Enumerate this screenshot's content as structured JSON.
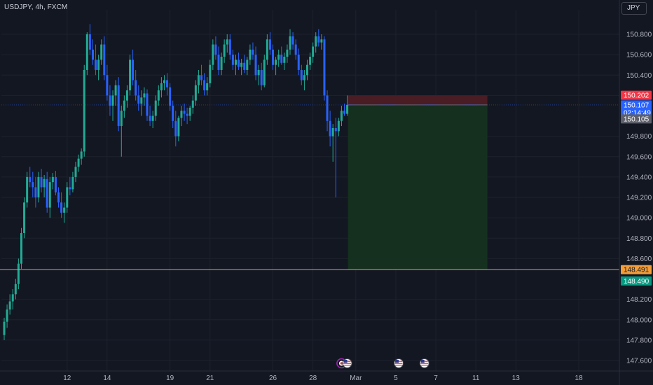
{
  "header": {
    "symbol_title": "USDJPY, 4h, FXCM",
    "currency_button": "JPY"
  },
  "colors": {
    "background": "#131722",
    "candle_up": "#22ab94",
    "candle_down": "#2962ff",
    "stop_zone": "#4a1c24",
    "target_zone": "#15301f",
    "level_line": "#f29d38",
    "grid": "#1e222d"
  },
  "chart_data": {
    "type": "candlestick",
    "symbol": "USDJPY",
    "timeframe": "4h",
    "source": "FXCM",
    "y_ticks": [
      150.8,
      150.6,
      150.4,
      150.2,
      149.8,
      149.6,
      149.4,
      149.2,
      149.0,
      148.8,
      148.6,
      148.2,
      148.0,
      147.8,
      147.6
    ],
    "ylim": [
      147.55,
      151.0
    ],
    "x_labels": [
      "12",
      "14",
      "19",
      "21",
      "26",
      "28",
      "Mar",
      "5",
      "7",
      "11",
      "13",
      "18"
    ],
    "x_label_candle_index": [
      22,
      36,
      58,
      72,
      94,
      108,
      123,
      137,
      151,
      165,
      179,
      201
    ],
    "candles": [
      [
        147.85,
        148.02,
        147.8,
        147.98
      ],
      [
        147.98,
        148.15,
        147.92,
        148.1
      ],
      [
        148.1,
        148.25,
        148.05,
        148.18
      ],
      [
        148.18,
        148.3,
        148.1,
        148.25
      ],
      [
        148.25,
        148.4,
        148.2,
        148.35
      ],
      [
        148.35,
        148.6,
        148.3,
        148.55
      ],
      [
        148.55,
        148.9,
        148.5,
        148.85
      ],
      [
        148.85,
        149.2,
        148.8,
        149.15
      ],
      [
        149.15,
        149.45,
        149.1,
        149.4
      ],
      [
        149.4,
        149.5,
        149.3,
        149.35
      ],
      [
        149.35,
        149.45,
        149.2,
        149.3
      ],
      [
        149.3,
        149.4,
        149.1,
        149.2
      ],
      [
        149.2,
        149.45,
        149.15,
        149.4
      ],
      [
        149.4,
        149.48,
        149.25,
        149.3
      ],
      [
        149.3,
        149.42,
        149.2,
        149.38
      ],
      [
        149.38,
        149.45,
        149.05,
        149.1
      ],
      [
        149.1,
        149.4,
        149.0,
        149.35
      ],
      [
        149.35,
        149.44,
        149.28,
        149.4
      ],
      [
        149.4,
        149.46,
        149.22,
        149.25
      ],
      [
        149.25,
        149.3,
        149.1,
        149.15
      ],
      [
        149.15,
        149.25,
        149.0,
        149.05
      ],
      [
        149.05,
        149.15,
        148.95,
        149.1
      ],
      [
        149.1,
        149.35,
        149.05,
        149.3
      ],
      [
        149.3,
        149.4,
        149.22,
        149.28
      ],
      [
        149.28,
        149.45,
        149.25,
        149.4
      ],
      [
        149.4,
        149.55,
        149.35,
        149.5
      ],
      [
        149.5,
        149.62,
        149.45,
        149.58
      ],
      [
        149.58,
        149.68,
        149.52,
        149.65
      ],
      [
        149.65,
        150.5,
        149.6,
        150.45
      ],
      [
        150.45,
        150.82,
        150.4,
        150.8
      ],
      [
        150.8,
        150.9,
        150.6,
        150.65
      ],
      [
        150.65,
        150.75,
        150.5,
        150.55
      ],
      [
        150.55,
        150.7,
        150.4,
        150.45
      ],
      [
        150.45,
        150.6,
        150.35,
        150.55
      ],
      [
        150.55,
        150.75,
        150.5,
        150.7
      ],
      [
        150.7,
        150.78,
        150.35,
        150.4
      ],
      [
        150.4,
        150.5,
        150.15,
        150.2
      ],
      [
        150.2,
        150.3,
        150.0,
        150.1
      ],
      [
        150.1,
        150.25,
        149.95,
        150.2
      ],
      [
        150.2,
        150.35,
        150.1,
        150.3
      ],
      [
        150.3,
        150.38,
        149.85,
        149.9
      ],
      [
        149.9,
        150.1,
        149.6,
        150.05
      ],
      [
        150.05,
        150.2,
        149.98,
        150.15
      ],
      [
        150.15,
        150.3,
        150.08,
        150.25
      ],
      [
        150.25,
        150.6,
        150.2,
        150.55
      ],
      [
        150.55,
        150.65,
        150.3,
        150.35
      ],
      [
        150.35,
        150.45,
        150.15,
        150.2
      ],
      [
        150.2,
        150.3,
        150.05,
        150.12
      ],
      [
        150.12,
        150.25,
        150.0,
        150.18
      ],
      [
        150.18,
        150.28,
        150.1,
        150.22
      ],
      [
        150.22,
        150.26,
        149.95,
        150.0
      ],
      [
        150.0,
        150.1,
        149.9,
        149.95
      ],
      [
        149.95,
        150.05,
        149.88,
        150.0
      ],
      [
        150.0,
        150.2,
        149.95,
        150.15
      ],
      [
        150.15,
        150.3,
        150.1,
        150.25
      ],
      [
        150.25,
        150.38,
        150.18,
        150.32
      ],
      [
        150.32,
        150.4,
        150.25,
        150.35
      ],
      [
        150.35,
        150.42,
        150.2,
        150.28
      ],
      [
        150.28,
        150.32,
        150.05,
        150.1
      ],
      [
        150.1,
        150.15,
        149.88,
        149.95
      ],
      [
        149.95,
        150.05,
        149.7,
        149.8
      ],
      [
        149.8,
        150.0,
        149.75,
        149.98
      ],
      [
        149.98,
        150.1,
        149.9,
        150.05
      ],
      [
        150.05,
        150.12,
        149.95,
        150.02
      ],
      [
        150.02,
        150.08,
        149.92,
        150.0
      ],
      [
        150.0,
        150.1,
        149.95,
        150.08
      ],
      [
        150.08,
        150.2,
        150.02,
        150.15
      ],
      [
        150.15,
        150.35,
        150.1,
        150.3
      ],
      [
        150.3,
        150.45,
        150.22,
        150.4
      ],
      [
        150.4,
        150.5,
        150.3,
        150.35
      ],
      [
        150.35,
        150.42,
        150.2,
        150.25
      ],
      [
        150.25,
        150.38,
        150.2,
        150.32
      ],
      [
        150.32,
        150.55,
        150.28,
        150.5
      ],
      [
        150.5,
        150.75,
        150.45,
        150.7
      ],
      [
        150.7,
        150.78,
        150.55,
        150.6
      ],
      [
        150.6,
        150.68,
        150.4,
        150.45
      ],
      [
        150.45,
        150.62,
        150.4,
        150.58
      ],
      [
        150.58,
        150.75,
        150.52,
        150.7
      ],
      [
        150.7,
        150.8,
        150.62,
        150.75
      ],
      [
        150.75,
        150.8,
        150.55,
        150.6
      ],
      [
        150.6,
        150.65,
        150.45,
        150.5
      ],
      [
        150.5,
        150.6,
        150.4,
        150.55
      ],
      [
        150.55,
        150.62,
        150.45,
        150.48
      ],
      [
        150.48,
        150.56,
        150.4,
        150.52
      ],
      [
        150.52,
        150.6,
        150.42,
        150.45
      ],
      [
        150.45,
        150.58,
        150.4,
        150.55
      ],
      [
        150.55,
        150.7,
        150.5,
        150.65
      ],
      [
        150.65,
        150.72,
        150.55,
        150.6
      ],
      [
        150.6,
        150.68,
        150.35,
        150.4
      ],
      [
        150.4,
        150.5,
        150.3,
        150.45
      ],
      [
        150.45,
        150.52,
        150.25,
        150.3
      ],
      [
        150.3,
        150.6,
        150.28,
        150.55
      ],
      [
        150.55,
        150.8,
        150.5,
        150.75
      ],
      [
        150.75,
        150.82,
        150.6,
        150.65
      ],
      [
        150.65,
        150.7,
        150.45,
        150.5
      ],
      [
        150.5,
        150.58,
        150.4,
        150.55
      ],
      [
        150.55,
        150.65,
        150.48,
        150.6
      ],
      [
        150.6,
        150.68,
        150.5,
        150.52
      ],
      [
        150.52,
        150.62,
        150.45,
        150.58
      ],
      [
        150.58,
        150.7,
        150.52,
        150.65
      ],
      [
        150.65,
        150.85,
        150.6,
        150.78
      ],
      [
        150.78,
        150.82,
        150.65,
        150.7
      ],
      [
        150.7,
        150.75,
        150.55,
        150.6
      ],
      [
        150.6,
        150.66,
        150.4,
        150.45
      ],
      [
        150.45,
        150.5,
        150.3,
        150.35
      ],
      [
        150.35,
        150.45,
        150.25,
        150.4
      ],
      [
        150.4,
        150.55,
        150.35,
        150.5
      ],
      [
        150.5,
        150.62,
        150.45,
        150.58
      ],
      [
        150.58,
        150.72,
        150.52,
        150.68
      ],
      [
        150.68,
        150.82,
        150.62,
        150.78
      ],
      [
        150.78,
        150.85,
        150.68,
        150.72
      ],
      [
        150.72,
        150.8,
        150.65,
        150.75
      ],
      [
        150.75,
        150.78,
        150.15,
        150.2
      ],
      [
        150.2,
        150.25,
        149.85,
        149.95
      ],
      [
        149.95,
        150.05,
        149.7,
        149.8
      ],
      [
        149.8,
        149.92,
        149.55,
        149.88
      ],
      [
        149.88,
        149.98,
        149.2,
        149.85
      ],
      [
        149.85,
        149.98,
        149.8,
        149.95
      ],
      [
        149.95,
        150.1,
        149.9,
        150.05
      ],
      [
        150.05,
        150.12,
        150.0,
        150.02
      ],
      [
        150.02,
        150.2,
        150.0,
        150.107
      ]
    ],
    "position": {
      "type": "short",
      "stop_price": 150.202,
      "entry_price": 150.107,
      "target_price": 148.491
    },
    "horizontal_line_price": 148.491,
    "price_tags": [
      {
        "text": "150.202",
        "price": 150.202,
        "bg": "#f23645",
        "fg": "#ffffff"
      },
      {
        "text": "150.107",
        "price": 150.107,
        "bg": "#2962ff",
        "fg": "#ffffff",
        "subtext": "02:14:49"
      },
      {
        "text": "150.105",
        "price": 149.97,
        "bg": "#5d606b",
        "fg": "#ffffff"
      },
      {
        "text": "148.491",
        "price": 148.491,
        "bg": "#f29d38",
        "fg": "#131722"
      },
      {
        "text": "148.490",
        "price": 148.38,
        "bg": "#089981",
        "fg": "#ffffff"
      }
    ],
    "event_markers": [
      {
        "kind": "dividend-flag",
        "candle_index": 118
      },
      {
        "kind": "us-flag",
        "candle_index": 120
      },
      {
        "kind": "us-flag",
        "candle_index": 138
      },
      {
        "kind": "us-flag",
        "candle_index": 147
      }
    ]
  }
}
